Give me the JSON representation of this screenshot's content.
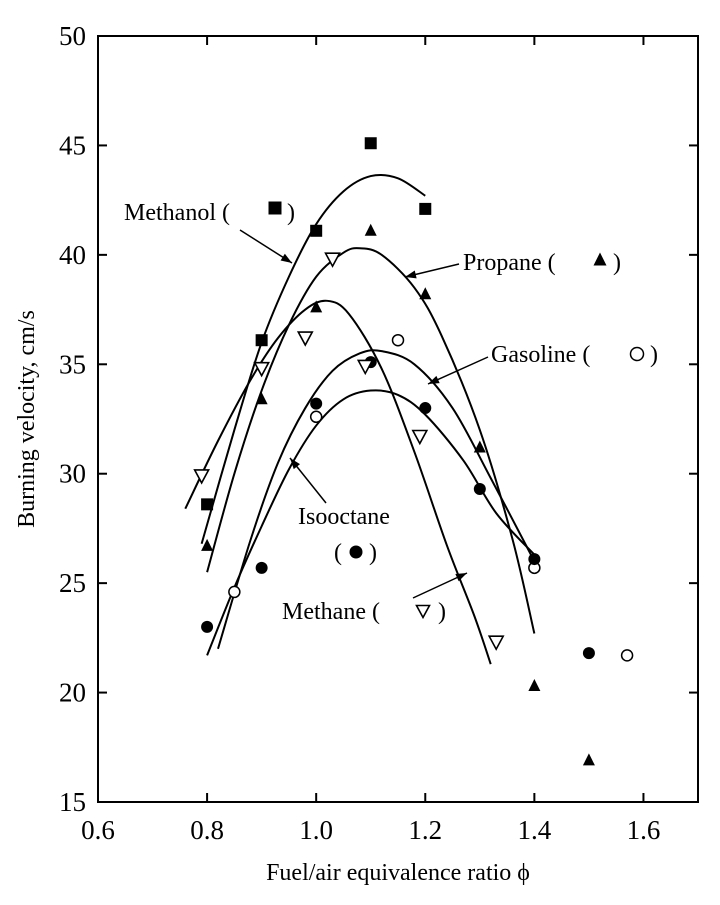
{
  "chart_data": {
    "type": "scatter",
    "title": "",
    "xlabel": "Fuel/air equivalence ratio ϕ",
    "ylabel": "Burning velocity, cm/s",
    "xlim": [
      0.6,
      1.7
    ],
    "ylim": [
      15,
      50
    ],
    "xticks": [
      0.6,
      0.8,
      1.0,
      1.2,
      1.4,
      1.6
    ],
    "xtick_labels": [
      "0.6",
      "0.8",
      "1.0",
      "1.2",
      "1.4",
      "1.6"
    ],
    "yticks": [
      15,
      20,
      25,
      30,
      35,
      40,
      45,
      50
    ],
    "ytick_labels": [
      "15",
      "20",
      "25",
      "30",
      "35",
      "40",
      "45",
      "50"
    ],
    "grid": false,
    "legend": "none (series labelled directly on the plot)",
    "series": [
      {
        "name": "Methanol",
        "label_text": "Methanol (",
        "label_close": ")",
        "marker": "square",
        "points": [
          [
            0.8,
            28.6
          ],
          [
            0.9,
            36.1
          ],
          [
            1.0,
            41.1
          ],
          [
            1.1,
            45.1
          ],
          [
            1.2,
            42.1
          ]
        ],
        "curve": [
          [
            0.79,
            26.8
          ],
          [
            0.85,
            32.0
          ],
          [
            0.9,
            36.0
          ],
          [
            0.95,
            39.0
          ],
          [
            1.0,
            41.4
          ],
          [
            1.05,
            42.9
          ],
          [
            1.1,
            43.6
          ],
          [
            1.15,
            43.5
          ],
          [
            1.2,
            42.7
          ]
        ]
      },
      {
        "name": "Propane",
        "label_text": "Propane (",
        "label_close": ")",
        "marker": "triangle-up",
        "points": [
          [
            0.8,
            26.7
          ],
          [
            0.9,
            33.4
          ],
          [
            1.0,
            37.6
          ],
          [
            1.1,
            41.1
          ],
          [
            1.2,
            38.2
          ],
          [
            1.3,
            31.2
          ],
          [
            1.4,
            20.3
          ],
          [
            1.5,
            16.9
          ]
        ],
        "curve": [
          [
            0.8,
            25.5
          ],
          [
            0.85,
            30.0
          ],
          [
            0.9,
            33.8
          ],
          [
            0.95,
            36.8
          ],
          [
            1.0,
            39.0
          ],
          [
            1.05,
            40.1
          ],
          [
            1.08,
            40.3
          ],
          [
            1.12,
            40.0
          ],
          [
            1.18,
            38.5
          ],
          [
            1.23,
            36.3
          ],
          [
            1.3,
            32.0
          ],
          [
            1.36,
            27.0
          ],
          [
            1.4,
            22.7
          ]
        ]
      },
      {
        "name": "Gasoline",
        "label_text": "Gasoline (",
        "label_close": ")",
        "marker": "circle-open",
        "points": [
          [
            0.85,
            24.6
          ],
          [
            1.0,
            32.6
          ],
          [
            1.15,
            36.1
          ],
          [
            1.4,
            25.7
          ],
          [
            1.57,
            21.7
          ]
        ],
        "curve": [
          [
            0.82,
            22.0
          ],
          [
            0.88,
            27.0
          ],
          [
            0.93,
            30.5
          ],
          [
            0.98,
            33.0
          ],
          [
            1.03,
            34.7
          ],
          [
            1.08,
            35.5
          ],
          [
            1.12,
            35.6
          ],
          [
            1.18,
            35.0
          ],
          [
            1.25,
            33.0
          ],
          [
            1.32,
            29.8
          ],
          [
            1.4,
            26.0
          ]
        ]
      },
      {
        "name": "Isooctane",
        "label_text": "Isooctane",
        "label_line2": "(",
        "label_close": ")",
        "marker": "circle-filled",
        "points": [
          [
            0.8,
            23.0
          ],
          [
            0.9,
            25.7
          ],
          [
            1.0,
            33.2
          ],
          [
            1.1,
            35.1
          ],
          [
            1.2,
            33.0
          ],
          [
            1.3,
            29.3
          ],
          [
            1.4,
            26.1
          ],
          [
            1.5,
            21.8
          ]
        ],
        "curve": [
          [
            0.8,
            21.7
          ],
          [
            0.85,
            24.8
          ],
          [
            0.9,
            27.6
          ],
          [
            0.95,
            30.2
          ],
          [
            1.0,
            32.2
          ],
          [
            1.05,
            33.4
          ],
          [
            1.1,
            33.8
          ],
          [
            1.15,
            33.6
          ],
          [
            1.2,
            32.7
          ],
          [
            1.27,
            30.6
          ],
          [
            1.33,
            28.2
          ],
          [
            1.4,
            26.3
          ]
        ]
      },
      {
        "name": "Methane",
        "label_text": "Methane (",
        "label_close": ")",
        "marker": "triangle-down-open",
        "points": [
          [
            0.79,
            29.9
          ],
          [
            0.9,
            34.8
          ],
          [
            0.98,
            36.2
          ],
          [
            1.03,
            39.8
          ],
          [
            1.09,
            34.9
          ],
          [
            1.19,
            31.7
          ],
          [
            1.33,
            22.3
          ]
        ],
        "curve": [
          [
            0.76,
            28.4
          ],
          [
            0.82,
            31.5
          ],
          [
            0.88,
            34.3
          ],
          [
            0.93,
            36.2
          ],
          [
            0.98,
            37.5
          ],
          [
            1.02,
            37.9
          ],
          [
            1.06,
            37.3
          ],
          [
            1.12,
            34.8
          ],
          [
            1.18,
            31.0
          ],
          [
            1.24,
            26.7
          ],
          [
            1.29,
            23.5
          ],
          [
            1.32,
            21.3
          ]
        ]
      }
    ]
  }
}
